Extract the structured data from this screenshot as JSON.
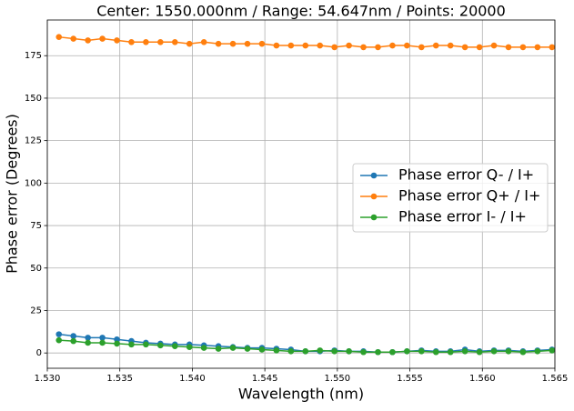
{
  "chart_data": {
    "type": "line",
    "title": "Center: 1550.000nm / Range: 54.647nm / Points: 20000",
    "xlabel": "Wavelength (nm)",
    "ylabel": "Phase error (Degrees)",
    "x": [
      1.5308,
      1.5318,
      1.5328,
      1.5338,
      1.5348,
      1.5358,
      1.5368,
      1.5378,
      1.5388,
      1.5398,
      1.5408,
      1.5418,
      1.5428,
      1.5438,
      1.5448,
      1.5458,
      1.5468,
      1.5478,
      1.5488,
      1.5498,
      1.5508,
      1.5518,
      1.5528,
      1.5538,
      1.5548,
      1.5558,
      1.5568,
      1.5578,
      1.5588,
      1.5598,
      1.5608,
      1.5618,
      1.5628,
      1.5638,
      1.5648
    ],
    "series": [
      {
        "name": "Phase error Q- / I+",
        "color": "#1f77b4",
        "values": [
          11,
          10,
          9,
          9,
          8,
          7,
          6,
          5.5,
          5,
          5,
          4.5,
          4,
          3.5,
          3,
          3,
          2.5,
          2,
          1,
          1,
          1.5,
          1,
          1,
          0.5,
          0.5,
          1,
          1.5,
          1,
          1,
          2,
          1,
          1.5,
          1.5,
          1,
          1.5,
          2
        ]
      },
      {
        "name": "Phase error Q+ / I+",
        "color": "#ff7f0e",
        "values": [
          186,
          185,
          184,
          185,
          184,
          183,
          183,
          183,
          183,
          182,
          183,
          182,
          182,
          182,
          182,
          181,
          181,
          181,
          181,
          180,
          181,
          180,
          180,
          181,
          181,
          180,
          181,
          181,
          180,
          180,
          181,
          180,
          180,
          180,
          180
        ]
      },
      {
        "name": "Phase error I- / I+",
        "color": "#2ca02c",
        "values": [
          7.5,
          7,
          6,
          6,
          5.5,
          5,
          5,
          4.5,
          4,
          3.5,
          3,
          2.5,
          3,
          2.5,
          2,
          1.5,
          1,
          1,
          1.5,
          1,
          1,
          0.5,
          0.5,
          0.5,
          1,
          1,
          0.5,
          0.5,
          1,
          0.5,
          1,
          1,
          0.5,
          1,
          1.5
        ]
      }
    ],
    "xlim": [
      1.53,
      1.565
    ],
    "xticks": [
      {
        "value": 1.53,
        "label": "1.530"
      },
      {
        "value": 1.535,
        "label": "1.535"
      },
      {
        "value": 1.54,
        "label": "1.540"
      },
      {
        "value": 1.545,
        "label": "1.545"
      },
      {
        "value": 1.55,
        "label": "1.550"
      },
      {
        "value": 1.555,
        "label": "1.555"
      },
      {
        "value": 1.56,
        "label": "1.560"
      },
      {
        "value": 1.565,
        "label": "1.565"
      }
    ],
    "ylim": [
      -9,
      196
    ],
    "yticks": [
      0,
      25,
      50,
      75,
      100,
      125,
      150,
      175
    ],
    "grid": true,
    "legend": "right"
  }
}
